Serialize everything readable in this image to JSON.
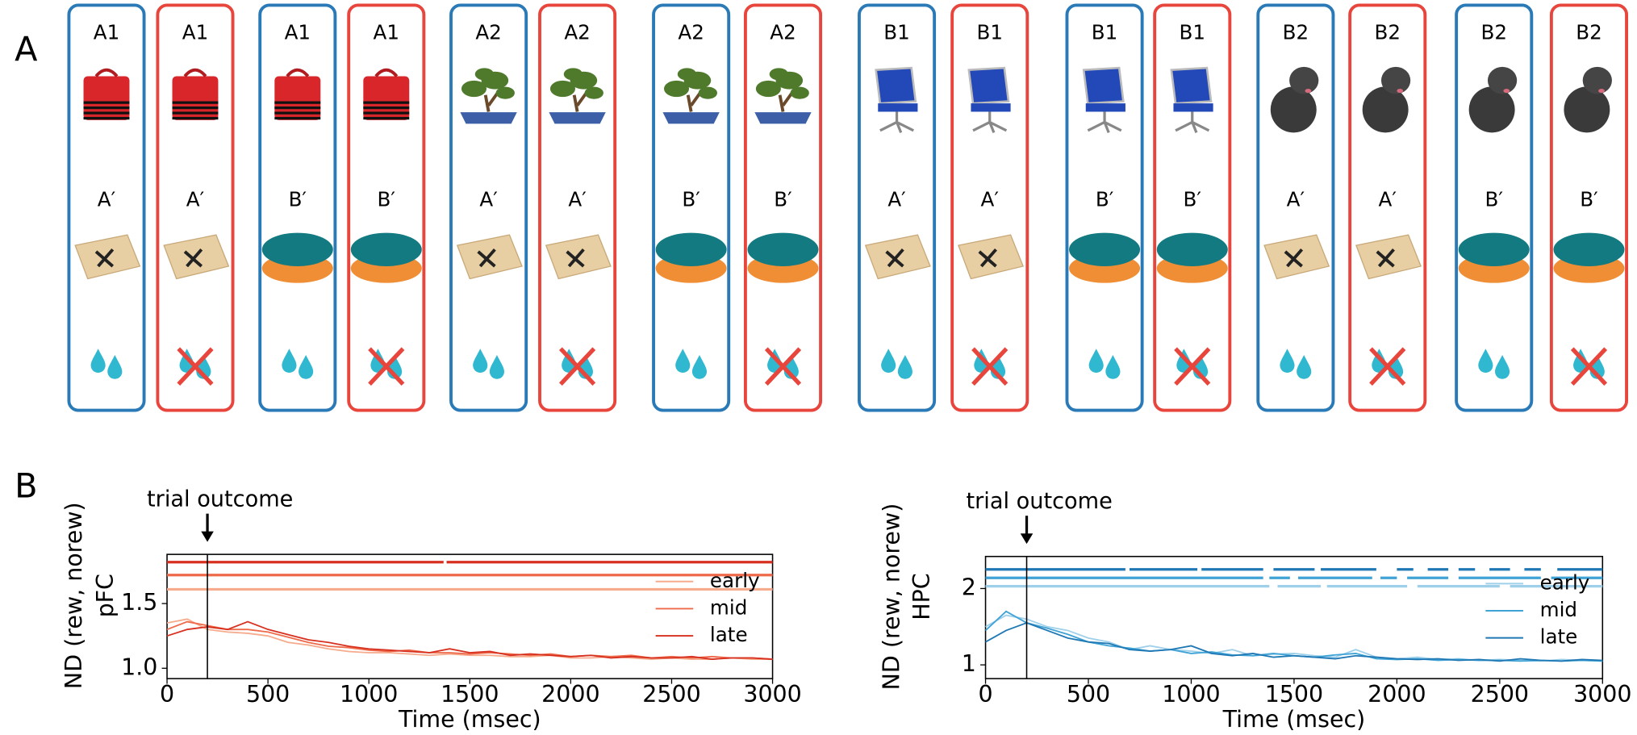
{
  "panel_a": {
    "label": "A",
    "cards": [
      {
        "stimulus": "A1",
        "cue": "A′",
        "color": "#2a7ab8",
        "crossed": false
      },
      {
        "stimulus": "A1",
        "cue": "A′",
        "color": "#e8453c",
        "crossed": true
      },
      {
        "stimulus": "A1",
        "cue": "B′",
        "color": "#2a7ab8",
        "crossed": false
      },
      {
        "stimulus": "A1",
        "cue": "B′",
        "color": "#e8453c",
        "crossed": true
      },
      {
        "stimulus": "A2",
        "cue": "A′",
        "color": "#2a7ab8",
        "crossed": false
      },
      {
        "stimulus": "A2",
        "cue": "A′",
        "color": "#e8453c",
        "crossed": true
      },
      {
        "stimulus": "A2",
        "cue": "B′",
        "color": "#2a7ab8",
        "crossed": false
      },
      {
        "stimulus": "A2",
        "cue": "B′",
        "color": "#e8453c",
        "crossed": true
      },
      {
        "stimulus": "B1",
        "cue": "A′",
        "color": "#2a7ab8",
        "crossed": false
      },
      {
        "stimulus": "B1",
        "cue": "A′",
        "color": "#e8453c",
        "crossed": true
      },
      {
        "stimulus": "B1",
        "cue": "B′",
        "color": "#2a7ab8",
        "crossed": false
      },
      {
        "stimulus": "B1",
        "cue": "B′",
        "color": "#e8453c",
        "crossed": true
      },
      {
        "stimulus": "B2",
        "cue": "A′",
        "color": "#2a7ab8",
        "crossed": false
      },
      {
        "stimulus": "B2",
        "cue": "A′",
        "color": "#e8453c",
        "crossed": true
      },
      {
        "stimulus": "B2",
        "cue": "B′",
        "color": "#2a7ab8",
        "crossed": false
      },
      {
        "stimulus": "B2",
        "cue": "B′",
        "color": "#e8453c",
        "crossed": true
      }
    ]
  },
  "panel_b": {
    "label": "B"
  },
  "chart_data": [
    {
      "type": "line",
      "ylabel": [
        "ND (rew, norew)",
        "pFC"
      ],
      "xlabel": "Time (msec)",
      "annotation": {
        "text": "trial outcome",
        "x": 200
      },
      "x": [
        0,
        100,
        200,
        300,
        400,
        500,
        600,
        700,
        800,
        900,
        1000,
        1100,
        1200,
        1300,
        1400,
        1500,
        1600,
        1700,
        1800,
        1900,
        2000,
        2100,
        2200,
        2300,
        2400,
        2500,
        2600,
        2700,
        2800,
        2900,
        3000
      ],
      "xlim": [
        0,
        3000
      ],
      "xticks": [
        0,
        500,
        1000,
        1500,
        2000,
        2500,
        3000
      ],
      "ylim": [
        0.92,
        1.88
      ],
      "yticks": [
        {
          "value": 1.0,
          "label": "1.0"
        },
        1.5
      ],
      "legend": "center right",
      "series": [
        {
          "name": "early",
          "color": "#f5ab8c",
          "sig_y": 1.61,
          "sig_segments": [
            [
              0,
              3000
            ]
          ],
          "values": [
            1.35,
            1.38,
            1.3,
            1.28,
            1.27,
            1.25,
            1.2,
            1.18,
            1.15,
            1.13,
            1.12,
            1.12,
            1.11,
            1.1,
            1.11,
            1.1,
            1.1,
            1.09,
            1.09,
            1.1,
            1.08,
            1.08,
            1.09,
            1.08,
            1.07,
            1.08,
            1.07,
            1.07,
            1.08,
            1.07,
            1.07
          ]
        },
        {
          "name": "mid",
          "color": "#ee6a4a",
          "sig_y": 1.72,
          "sig_segments": [
            [
              0,
              3000
            ]
          ],
          "values": [
            1.3,
            1.36,
            1.33,
            1.3,
            1.3,
            1.28,
            1.24,
            1.2,
            1.17,
            1.16,
            1.14,
            1.13,
            1.14,
            1.12,
            1.12,
            1.11,
            1.12,
            1.11,
            1.1,
            1.11,
            1.09,
            1.1,
            1.09,
            1.1,
            1.08,
            1.09,
            1.08,
            1.09,
            1.08,
            1.08,
            1.07
          ]
        },
        {
          "name": "late",
          "color": "#d7301f",
          "sig_y": 1.82,
          "sig_segments": [
            [
              0,
              1370
            ],
            [
              1385,
              3000
            ]
          ],
          "values": [
            1.25,
            1.3,
            1.32,
            1.3,
            1.36,
            1.3,
            1.26,
            1.22,
            1.2,
            1.17,
            1.15,
            1.14,
            1.13,
            1.12,
            1.15,
            1.12,
            1.13,
            1.1,
            1.11,
            1.1,
            1.09,
            1.1,
            1.08,
            1.09,
            1.08,
            1.08,
            1.09,
            1.07,
            1.08,
            1.08,
            1.07
          ]
        }
      ]
    },
    {
      "type": "line",
      "ylabel": [
        "ND (rew, norew)",
        "HPC"
      ],
      "xlabel": "Time (msec)",
      "annotation": {
        "text": "trial outcome",
        "x": 200
      },
      "x": [
        0,
        100,
        200,
        300,
        400,
        500,
        600,
        700,
        800,
        900,
        1000,
        1100,
        1200,
        1300,
        1400,
        1500,
        1600,
        1700,
        1800,
        1900,
        2000,
        2100,
        2200,
        2300,
        2400,
        2500,
        2600,
        2700,
        2800,
        2900,
        3000
      ],
      "xlim": [
        0,
        3000
      ],
      "xticks": [
        0,
        500,
        1000,
        1500,
        2000,
        2500,
        3000
      ],
      "ylim": [
        0.82,
        2.42
      ],
      "yticks": [
        1,
        2
      ],
      "legend": "center right",
      "series": [
        {
          "name": "early",
          "color": "#9fd0ea",
          "sig_y": 2.03,
          "sig_segments": [
            [
              0,
              1380
            ],
            [
              1420,
              1630
            ],
            [
              1660,
              2050
            ],
            [
              2100,
              2500
            ],
            [
              2550,
              3000
            ]
          ],
          "values": [
            1.5,
            1.65,
            1.6,
            1.5,
            1.45,
            1.35,
            1.3,
            1.2,
            1.25,
            1.2,
            1.18,
            1.15,
            1.2,
            1.12,
            1.14,
            1.15,
            1.12,
            1.1,
            1.2,
            1.1,
            1.08,
            1.1,
            1.07,
            1.08,
            1.06,
            1.07,
            1.06,
            1.05,
            1.07,
            1.06,
            1.05
          ]
        },
        {
          "name": "mid",
          "color": "#3fa3d6",
          "sig_y": 2.14,
          "sig_segments": [
            [
              0,
              1350
            ],
            [
              1380,
              1480
            ],
            [
              1520,
              1880
            ],
            [
              1920,
              2000
            ],
            [
              2050,
              2250
            ],
            [
              2300,
              2700
            ],
            [
              2750,
              3000
            ]
          ],
          "values": [
            1.45,
            1.7,
            1.55,
            1.48,
            1.4,
            1.3,
            1.25,
            1.22,
            1.18,
            1.2,
            1.15,
            1.17,
            1.13,
            1.12,
            1.15,
            1.12,
            1.1,
            1.13,
            1.15,
            1.08,
            1.07,
            1.08,
            1.06,
            1.07,
            1.06,
            1.06,
            1.05,
            1.06,
            1.05,
            1.06,
            1.05
          ]
        },
        {
          "name": "late",
          "color": "#1f78b4",
          "sig_y": 2.25,
          "sig_segments": [
            [
              0,
              680
            ],
            [
              700,
              1030
            ],
            [
              1050,
              1350
            ],
            [
              1400,
              1600
            ],
            [
              1630,
              1900
            ],
            [
              2000,
              2080
            ],
            [
              2150,
              2250
            ],
            [
              2300,
              2380
            ],
            [
              2450,
              2550
            ],
            [
              2620,
              2700
            ],
            [
              2780,
              3000
            ]
          ],
          "values": [
            1.3,
            1.45,
            1.55,
            1.45,
            1.35,
            1.3,
            1.28,
            1.2,
            1.18,
            1.2,
            1.25,
            1.15,
            1.12,
            1.15,
            1.1,
            1.12,
            1.1,
            1.08,
            1.12,
            1.1,
            1.08,
            1.07,
            1.08,
            1.06,
            1.07,
            1.05,
            1.08,
            1.06,
            1.05,
            1.07,
            1.06
          ]
        }
      ]
    }
  ]
}
